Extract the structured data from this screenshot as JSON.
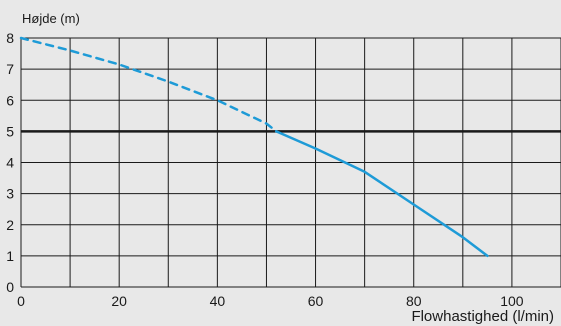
{
  "chart_data": {
    "type": "line",
    "title": "",
    "ylabel": "Højde (m)",
    "xlabel": "Flowhastighed (l/min)",
    "xlim": [
      0,
      110
    ],
    "ylim": [
      0,
      8
    ],
    "x_ticks": [
      0,
      20,
      40,
      60,
      80,
      100
    ],
    "x_tick_labels": [
      "0",
      "20",
      "40",
      "60",
      "80",
      "100"
    ],
    "x_gridlines": [
      0,
      10,
      20,
      30,
      40,
      50,
      60,
      70,
      80,
      90,
      100,
      110
    ],
    "y_ticks": [
      0,
      1,
      2,
      3,
      4,
      5,
      6,
      7,
      8
    ],
    "y_tick_labels": [
      "0",
      "1",
      "2",
      "3",
      "4",
      "5",
      "6",
      "7",
      "8"
    ],
    "grid": true,
    "reference_line": {
      "y": 5,
      "color": "#1a1a1a"
    },
    "series": [
      {
        "color": "#1e9bd7",
        "style_segments": [
          {
            "style": "dashed",
            "x_range": [
              0,
              52
            ]
          },
          {
            "style": "solid",
            "x_range": [
              52,
              95
            ]
          }
        ],
        "x": [
          0,
          10,
          20,
          30,
          40,
          50,
          52,
          60,
          70,
          80,
          90,
          95
        ],
        "y": [
          8.0,
          7.6,
          7.15,
          6.6,
          6.0,
          5.25,
          5.0,
          4.45,
          3.7,
          2.65,
          1.6,
          1.0
        ]
      }
    ]
  },
  "colors": {
    "background": "#e8e8e8",
    "grid": "#1a1a1a",
    "series": "#1e9bd7",
    "text": "#1a1a1a"
  }
}
